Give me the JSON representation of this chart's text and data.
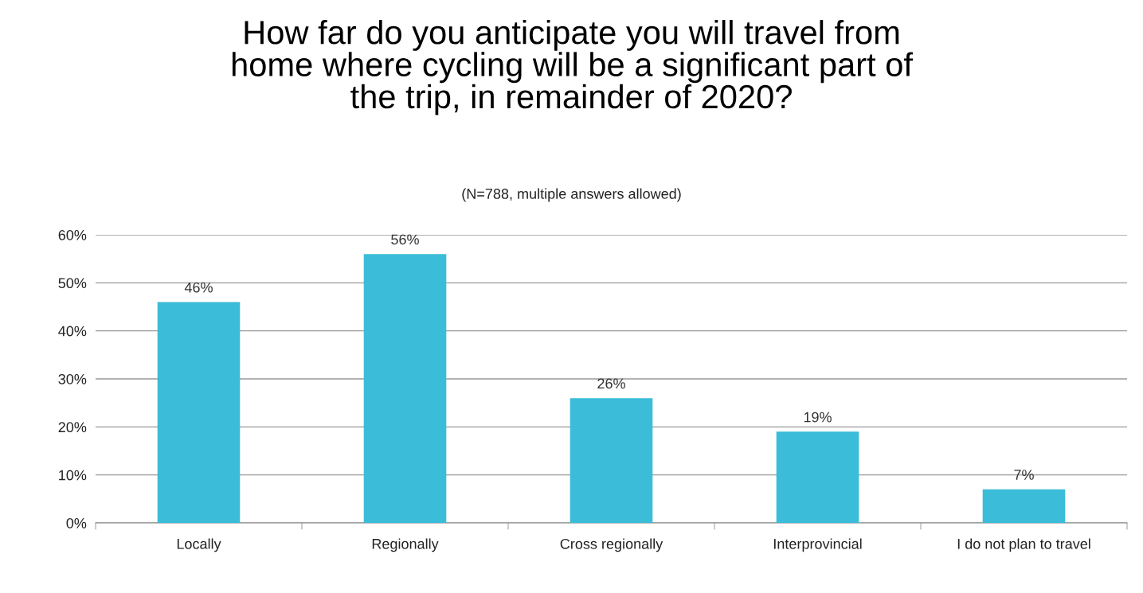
{
  "chart_data": {
    "type": "bar",
    "title": "How far do you anticipate you will travel from\nhome where cycling will be a significant part of\nthe trip, in remainder of 2020?",
    "subtitle": "(N=788, multiple answers allowed)",
    "categories": [
      "Locally",
      "Regionally",
      "Cross regionally",
      "Interprovincial",
      "I do not plan to travel"
    ],
    "values": [
      46,
      56,
      26,
      19,
      7
    ],
    "value_labels": [
      "46%",
      "56%",
      "26%",
      "19%",
      "7%"
    ],
    "color": "#3bbcd8",
    "ylim": [
      0,
      60
    ],
    "yticks": [
      {
        "value": 0,
        "label": "0%"
      },
      {
        "value": 10,
        "label": "10%"
      },
      {
        "value": 20,
        "label": "20%"
      },
      {
        "value": 30,
        "label": "30%"
      },
      {
        "value": 40,
        "label": "40%"
      },
      {
        "value": 50,
        "label": "50%"
      },
      {
        "value": 60,
        "label": "60%"
      }
    ],
    "grid": "y",
    "legend": false
  }
}
